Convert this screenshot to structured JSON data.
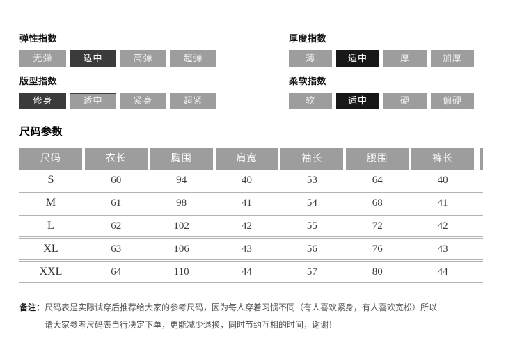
{
  "colors": {
    "chip_gray": "#9d9d9d",
    "chip_dark": "#3b3b3b",
    "chip_black": "#181818",
    "header_gray": "#9d9d9d",
    "row_line": "#b3b3b3"
  },
  "attribute_groups": [
    {
      "label": "弹性指数",
      "options": [
        "无弹",
        "适中",
        "高弹",
        "超弹"
      ],
      "selected_index": 1,
      "selected_style": "dark"
    },
    {
      "label": "厚度指数",
      "options": [
        "薄",
        "适中",
        "厚",
        "加厚"
      ],
      "selected_index": 1,
      "selected_style": "black"
    },
    {
      "label": "版型指数",
      "options": [
        "修身",
        "适中",
        "紧身",
        "超紧"
      ],
      "selected_index": 0,
      "selected_style": "dark"
    },
    {
      "label": "柔软指数",
      "options": [
        "软",
        "适中",
        "硬",
        "偏硬"
      ],
      "selected_index": 1,
      "selected_style": "black"
    }
  ],
  "size_table": {
    "title": "尺码参数",
    "columns": [
      "尺码",
      "衣长",
      "胸围",
      "肩宽",
      "袖长",
      "腰围",
      "裤长"
    ],
    "rows": [
      {
        "size": "S",
        "values": [
          60,
          94,
          40,
          53,
          64,
          40
        ]
      },
      {
        "size": "M",
        "values": [
          61,
          98,
          41,
          54,
          68,
          41
        ]
      },
      {
        "size": "L",
        "values": [
          62,
          102,
          42,
          55,
          72,
          42
        ]
      },
      {
        "size": "XL",
        "values": [
          63,
          106,
          43,
          56,
          76,
          43
        ]
      },
      {
        "size": "XXL",
        "values": [
          64,
          110,
          44,
          57,
          80,
          44
        ]
      }
    ]
  },
  "note": {
    "prefix": "备注：",
    "lines": [
      "尺码表是实际试穿后推荐给大家的参考尺码，因为每人穿着习惯不同（有人喜欢紧身，有人喜欢宽松）所以",
      "请大家参考尺码表自行决定下单，更能减少退换，同时节约互相的时间，谢谢！"
    ]
  }
}
